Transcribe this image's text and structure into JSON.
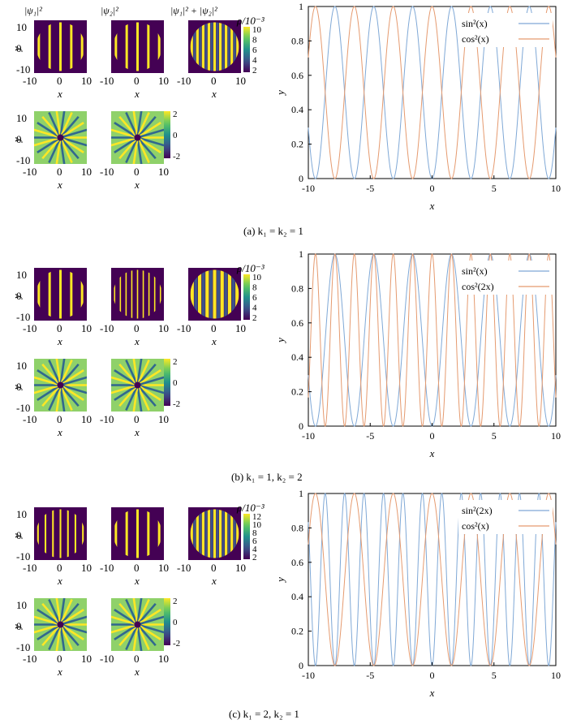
{
  "column_headers": [
    "|ψ₁|²",
    "|ψ₂|²",
    "|ψ₁|² + |ψ₂|²"
  ],
  "density_colorbar_label": "ρ/10⁻³",
  "small_axis_label_x": "x",
  "small_axis_label_y": "y",
  "small_ticks": [
    "-10",
    "0",
    "10"
  ],
  "rows": [
    {
      "caption": "(a) k₁ = k₂ = 1",
      "density_ticks": [
        "10",
        "8",
        "6",
        "4",
        "2"
      ],
      "phase_ticks": [
        "2",
        "0",
        "-2"
      ],
      "left_stripes": 9,
      "mid_stripes": 9,
      "right_stripes": 17
    },
    {
      "caption": "(b) k₁ = 1,  k₂ = 2",
      "density_ticks": [
        "10",
        "8",
        "6",
        "4",
        "2"
      ],
      "phase_ticks": [
        "2",
        "0",
        "-2"
      ],
      "left_stripes": 9,
      "mid_stripes": 17,
      "right_stripes": 13
    },
    {
      "caption": "(c) k₁ = 2,  k₂ = 1",
      "density_ticks": [
        "12",
        "10",
        "8",
        "6",
        "4",
        "2"
      ],
      "phase_ticks": [
        "2",
        "0",
        "-2"
      ],
      "left_stripes": 13,
      "mid_stripes": 9,
      "right_stripes": 17
    }
  ],
  "chart_data": [
    {
      "type": "line",
      "xlabel": "x",
      "ylabel": "y",
      "xlim": [
        -10,
        10
      ],
      "ylim": [
        0,
        1
      ],
      "x_ticks": [
        "-10",
        "-5",
        "0",
        "5",
        "10"
      ],
      "y_ticks": [
        "0",
        "0.2",
        "0.4",
        "0.6",
        "0.8",
        "1"
      ],
      "legend_placement": "top-right",
      "series": [
        {
          "name": "sin²(x)",
          "function": "sin^2(1*x)",
          "color": "#7fa8d6"
        },
        {
          "name": "cos²(x)",
          "function": "cos^2(1*x)",
          "color": "#e59a6f"
        }
      ]
    },
    {
      "type": "line",
      "xlabel": "x",
      "ylabel": "y",
      "xlim": [
        -10,
        10
      ],
      "ylim": [
        0,
        1
      ],
      "x_ticks": [
        "-10",
        "-5",
        "0",
        "5",
        "10"
      ],
      "y_ticks": [
        "0",
        "0.2",
        "0.4",
        "0.6",
        "0.8",
        "1"
      ],
      "legend_placement": "top-right",
      "series": [
        {
          "name": "sin²(x)",
          "function": "sin^2(1*x)",
          "color": "#7fa8d6"
        },
        {
          "name": "cos²(2x)",
          "function": "cos^2(2*x)",
          "color": "#e59a6f"
        }
      ]
    },
    {
      "type": "line",
      "xlabel": "x",
      "ylabel": "y",
      "xlim": [
        -10,
        10
      ],
      "ylim": [
        0,
        1
      ],
      "x_ticks": [
        "-10",
        "-5",
        "0",
        "5",
        "10"
      ],
      "y_ticks": [
        "0",
        "0.2",
        "0.4",
        "0.6",
        "0.8",
        "1"
      ],
      "legend_placement": "top-right",
      "series": [
        {
          "name": "sin²(2x)",
          "function": "sin^2(2*x)",
          "color": "#7fa8d6"
        },
        {
          "name": "cos²(x)",
          "function": "cos^2(1*x)",
          "color": "#e59a6f"
        }
      ]
    }
  ],
  "colors": {
    "viridis_dark": "#440154",
    "viridis_yellow": "#fde725",
    "series1": "#7fa8d6",
    "series2": "#e59a6f"
  }
}
